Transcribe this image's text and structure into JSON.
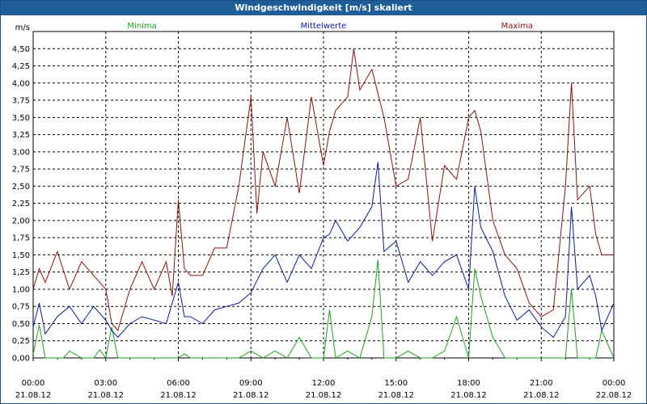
{
  "window": {
    "title": "Windgeschwindigkeit [m/s] skaliert"
  },
  "chart_data": {
    "type": "line",
    "title": "Windgeschwindigkeit [m/s] skaliert",
    "ylabel": "m/s",
    "xlabel": "",
    "ylim": [
      0,
      4.75
    ],
    "xlim_hours": [
      0,
      24
    ],
    "grid": true,
    "legend_position": "top",
    "y_ticks": [
      "0,00",
      "0,25",
      "0,50",
      "0,75",
      "1,00",
      "1,25",
      "1,50",
      "1,75",
      "2,00",
      "2,25",
      "2,50",
      "2,75",
      "3,00",
      "3,25",
      "3,50",
      "3,75",
      "4,00",
      "4,25",
      "4,50"
    ],
    "x_ticks": [
      {
        "time": "00:00",
        "date": "21.08.12"
      },
      {
        "time": "03:00",
        "date": "21.08.12"
      },
      {
        "time": "06:00",
        "date": "21.08.12"
      },
      {
        "time": "09:00",
        "date": "21.08.12"
      },
      {
        "time": "12:00",
        "date": "21.08.12"
      },
      {
        "time": "15:00",
        "date": "21.08.12"
      },
      {
        "time": "18:00",
        "date": "21.08.12"
      },
      {
        "time": "21:00",
        "date": "21.08.12"
      },
      {
        "time": "00:00",
        "date": "22.08.12"
      }
    ],
    "series": [
      {
        "name": "Minima",
        "color": "#1aa31a",
        "hours": [
          0,
          0.25,
          0.5,
          1,
          1.25,
          1.5,
          2,
          2.5,
          2.75,
          3,
          3.25,
          3.5,
          4,
          4.5,
          5,
          5.5,
          6,
          6.25,
          6.5,
          7,
          7.5,
          8,
          8.5,
          9,
          9.5,
          10,
          10.5,
          11,
          11.5,
          12,
          12.25,
          12.5,
          13,
          13.5,
          14,
          14.25,
          14.5,
          15,
          15.5,
          16,
          16.5,
          17,
          17.5,
          18,
          18.25,
          18.5,
          19,
          19.5,
          20,
          20.5,
          21,
          21.5,
          22,
          22.25,
          22.5,
          23,
          23.25,
          23.5,
          24
        ],
        "values": [
          0.05,
          0.48,
          0,
          0,
          0,
          0.1,
          0,
          0,
          0.12,
          0,
          0.45,
          0,
          0,
          0,
          0,
          0,
          0,
          0.06,
          0,
          0,
          0,
          0,
          0,
          0.1,
          0,
          0.1,
          0,
          0.3,
          0,
          0,
          0.7,
          0,
          0.1,
          0,
          0.6,
          1.43,
          0,
          0,
          0.1,
          0,
          0,
          0.1,
          0.6,
          0,
          1.3,
          0.9,
          0.3,
          0,
          0,
          0,
          0,
          0,
          0,
          1.0,
          0,
          0,
          0,
          0.4,
          0
        ]
      },
      {
        "name": "Mittelwerte",
        "color": "#0a1a9c",
        "hours": [
          0,
          0.25,
          0.5,
          1,
          1.5,
          2,
          2.5,
          3,
          3.25,
          3.5,
          4,
          4.5,
          5,
          5.5,
          6,
          6.25,
          6.5,
          7,
          7.5,
          8,
          8.5,
          9,
          9.5,
          10,
          10.5,
          11,
          11.5,
          12,
          12.25,
          12.5,
          13,
          13.5,
          14,
          14.25,
          14.5,
          15,
          15.5,
          16,
          16.5,
          17,
          17.5,
          18,
          18.25,
          18.5,
          19,
          19.5,
          20,
          20.5,
          21,
          21.5,
          22,
          22.25,
          22.5,
          23,
          23.25,
          23.5,
          24
        ],
        "values": [
          0.45,
          0.8,
          0.35,
          0.6,
          0.75,
          0.5,
          0.75,
          0.55,
          0.4,
          0.3,
          0.5,
          0.6,
          0.55,
          0.5,
          1.1,
          0.6,
          0.6,
          0.5,
          0.7,
          0.75,
          0.8,
          0.95,
          1.3,
          1.5,
          1.1,
          1.5,
          1.3,
          1.75,
          1.8,
          2.0,
          1.7,
          1.9,
          2.2,
          2.85,
          1.55,
          1.7,
          1.1,
          1.4,
          1.2,
          1.4,
          1.5,
          1.0,
          2.5,
          1.9,
          1.55,
          0.9,
          0.55,
          0.7,
          0.45,
          0.3,
          0.6,
          2.2,
          1.0,
          1.2,
          0.9,
          0.4,
          0.8
        ]
      },
      {
        "name": "Maxima",
        "color": "#8c1010",
        "hours": [
          0,
          0.25,
          0.5,
          1,
          1.5,
          2,
          2.5,
          3,
          3.25,
          3.5,
          4,
          4.5,
          5,
          5.5,
          5.75,
          6,
          6.25,
          6.5,
          7,
          7.5,
          8,
          8.5,
          9,
          9.25,
          9.5,
          10,
          10.5,
          11,
          11.5,
          12,
          12.25,
          12.5,
          13,
          13.25,
          13.5,
          14,
          14.5,
          15,
          15.5,
          16,
          16.5,
          17,
          17.5,
          18,
          18.25,
          18.5,
          19,
          19.5,
          20,
          20.5,
          21,
          21.5,
          22,
          22.25,
          22.5,
          23,
          23.25,
          23.5,
          24
        ],
        "values": [
          1.0,
          1.3,
          1.1,
          1.55,
          1.0,
          1.4,
          1.2,
          1.0,
          0.5,
          0.4,
          1.0,
          1.4,
          1.0,
          1.4,
          0.9,
          2.3,
          1.3,
          1.2,
          1.2,
          1.6,
          1.6,
          2.5,
          3.8,
          2.1,
          3.0,
          2.5,
          3.5,
          2.4,
          3.8,
          2.8,
          3.3,
          3.6,
          3.8,
          4.5,
          3.9,
          4.2,
          3.5,
          2.5,
          2.6,
          3.5,
          1.7,
          2.8,
          2.6,
          3.5,
          3.6,
          3.3,
          2.0,
          1.5,
          1.3,
          0.8,
          0.6,
          0.7,
          2.5,
          4.0,
          2.3,
          2.5,
          1.8,
          1.5,
          1.5
        ]
      }
    ]
  }
}
